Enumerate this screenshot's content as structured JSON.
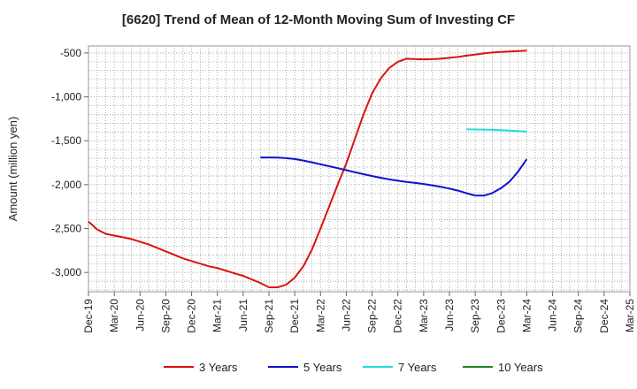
{
  "chart_data": {
    "type": "line",
    "title": "[6620]  Trend of Mean of 12-Month Moving Sum of Investing CF",
    "ylabel": "Amount (million yen)",
    "xlabel": "",
    "x_tick_labels": [
      "Dec-19",
      "Mar-20",
      "Jun-20",
      "Sep-20",
      "Dec-20",
      "Mar-21",
      "Jun-21",
      "Sep-21",
      "Dec-21",
      "Mar-22",
      "Jun-22",
      "Sep-22",
      "Dec-22",
      "Mar-23",
      "Jun-23",
      "Sep-23",
      "Dec-23",
      "Mar-24",
      "Jun-24",
      "Sep-24",
      "Dec-24",
      "Mar-25"
    ],
    "y_ticks": [
      -500,
      -1000,
      -1500,
      -2000,
      -2500,
      -3000
    ],
    "y_tick_labels": [
      "-500",
      "-1,000",
      "-1,500",
      "-2,000",
      "-2,500",
      "-3,000"
    ],
    "ylim": [
      -3220,
      -420
    ],
    "x_range_months": [
      "Dec-19",
      "Mar-25"
    ],
    "grid": true,
    "legend_position": "bottom",
    "series": [
      {
        "name": "3 Years",
        "color": "#dd1111",
        "points": [
          [
            "Dec-19",
            -2420
          ],
          [
            "Jan-20",
            -2510
          ],
          [
            "Feb-20",
            -2560
          ],
          [
            "Mar-20",
            -2580
          ],
          [
            "Apr-20",
            -2600
          ],
          [
            "May-20",
            -2620
          ],
          [
            "Jun-20",
            -2650
          ],
          [
            "Jul-20",
            -2680
          ],
          [
            "Aug-20",
            -2720
          ],
          [
            "Sep-20",
            -2760
          ],
          [
            "Oct-20",
            -2800
          ],
          [
            "Nov-20",
            -2840
          ],
          [
            "Dec-20",
            -2870
          ],
          [
            "Jan-21",
            -2900
          ],
          [
            "Feb-21",
            -2930
          ],
          [
            "Mar-21",
            -2950
          ],
          [
            "Apr-21",
            -2980
          ],
          [
            "May-21",
            -3010
          ],
          [
            "Jun-21",
            -3040
          ],
          [
            "Jul-21",
            -3080
          ],
          [
            "Aug-21",
            -3120
          ],
          [
            "Sep-21",
            -3170
          ],
          [
            "Oct-21",
            -3170
          ],
          [
            "Nov-21",
            -3140
          ],
          [
            "Dec-21",
            -3060
          ],
          [
            "Jan-22",
            -2930
          ],
          [
            "Feb-22",
            -2740
          ],
          [
            "Mar-22",
            -2500
          ],
          [
            "Apr-22",
            -2250
          ],
          [
            "May-22",
            -2000
          ],
          [
            "Jun-22",
            -1760
          ],
          [
            "Jul-22",
            -1480
          ],
          [
            "Aug-22",
            -1200
          ],
          [
            "Sep-22",
            -960
          ],
          [
            "Oct-22",
            -790
          ],
          [
            "Nov-22",
            -670
          ],
          [
            "Dec-22",
            -600
          ],
          [
            "Jan-23",
            -565
          ],
          [
            "Feb-23",
            -570
          ],
          [
            "Mar-23",
            -572
          ],
          [
            "Apr-23",
            -570
          ],
          [
            "May-23",
            -565
          ],
          [
            "Jun-23",
            -555
          ],
          [
            "Jul-23",
            -545
          ],
          [
            "Aug-23",
            -530
          ],
          [
            "Sep-23",
            -518
          ],
          [
            "Oct-23",
            -505
          ],
          [
            "Nov-23",
            -495
          ],
          [
            "Dec-23",
            -488
          ],
          [
            "Jan-24",
            -482
          ],
          [
            "Feb-24",
            -478
          ],
          [
            "Mar-24",
            -472
          ]
        ]
      },
      {
        "name": "5 Years",
        "color": "#1111cc",
        "points": [
          [
            "Aug-21",
            -1690
          ],
          [
            "Sep-21",
            -1690
          ],
          [
            "Oct-21",
            -1692
          ],
          [
            "Nov-21",
            -1698
          ],
          [
            "Dec-21",
            -1708
          ],
          [
            "Jan-22",
            -1725
          ],
          [
            "Feb-22",
            -1745
          ],
          [
            "Mar-22",
            -1768
          ],
          [
            "Apr-22",
            -1790
          ],
          [
            "May-22",
            -1812
          ],
          [
            "Jun-22",
            -1835
          ],
          [
            "Jul-22",
            -1858
          ],
          [
            "Aug-22",
            -1880
          ],
          [
            "Sep-22",
            -1902
          ],
          [
            "Oct-22",
            -1922
          ],
          [
            "Nov-22",
            -1940
          ],
          [
            "Dec-22",
            -1955
          ],
          [
            "Jan-23",
            -1968
          ],
          [
            "Feb-23",
            -1980
          ],
          [
            "Mar-23",
            -1992
          ],
          [
            "Apr-23",
            -2007
          ],
          [
            "May-23",
            -2025
          ],
          [
            "Jun-23",
            -2045
          ],
          [
            "Jul-23",
            -2068
          ],
          [
            "Aug-23",
            -2098
          ],
          [
            "Sep-23",
            -2123
          ],
          [
            "Oct-23",
            -2125
          ],
          [
            "Nov-23",
            -2095
          ],
          [
            "Dec-23",
            -2040
          ],
          [
            "Jan-24",
            -1965
          ],
          [
            "Feb-24",
            -1850
          ],
          [
            "Mar-24",
            -1710
          ]
        ]
      },
      {
        "name": "7 Years",
        "color": "#22dddd",
        "points": [
          [
            "Aug-23",
            -1370
          ],
          [
            "Sep-23",
            -1372
          ],
          [
            "Oct-23",
            -1373
          ],
          [
            "Nov-23",
            -1376
          ],
          [
            "Dec-23",
            -1380
          ],
          [
            "Jan-24",
            -1385
          ],
          [
            "Feb-24",
            -1390
          ],
          [
            "Mar-24",
            -1397
          ]
        ]
      },
      {
        "name": "10 Years",
        "color": "#228822",
        "points": []
      }
    ]
  }
}
